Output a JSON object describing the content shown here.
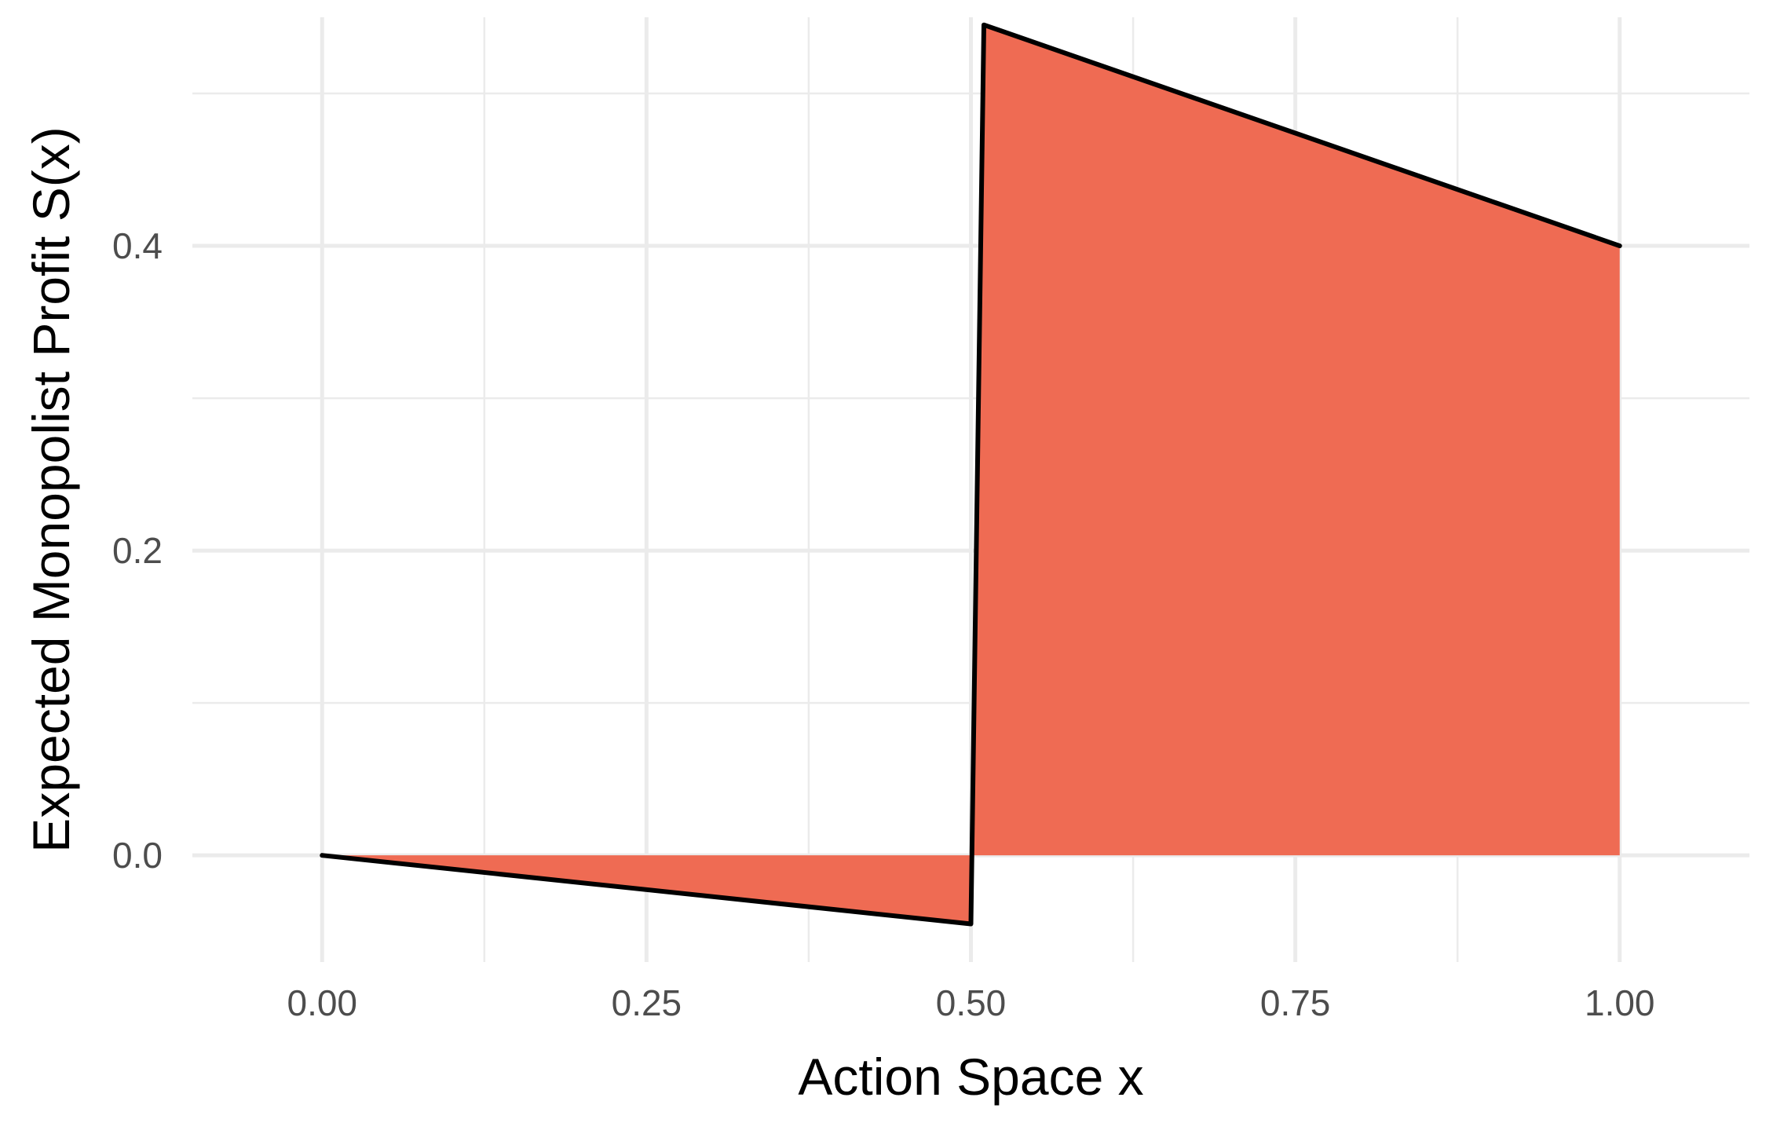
{
  "chart_data": {
    "type": "area",
    "xlabel": "Action Space x",
    "ylabel": "Expected Monopolist Profit S(x)",
    "xlim": [
      -0.1,
      1.1
    ],
    "ylim": [
      -0.07,
      0.55
    ],
    "x_ticks": [
      0.0,
      0.25,
      0.5,
      0.75,
      1.0
    ],
    "x_tick_labels": [
      "0.00",
      "0.25",
      "0.50",
      "0.75",
      "1.00"
    ],
    "x_minor_ticks": [
      0.125,
      0.375,
      0.625,
      0.875
    ],
    "y_ticks": [
      0.0,
      0.2,
      0.4
    ],
    "y_tick_labels": [
      "0.0",
      "0.2",
      "0.4"
    ],
    "y_minor_ticks": [
      0.1,
      0.3,
      0.5
    ],
    "grid": true,
    "legend": "none",
    "series": [
      {
        "x": [
          0.0,
          0.5,
          0.51,
          1.0
        ],
        "y": [
          0.0,
          -0.045,
          0.545,
          0.4
        ],
        "fill_color": "#ef6b53",
        "line_color": "#000000"
      }
    ]
  }
}
